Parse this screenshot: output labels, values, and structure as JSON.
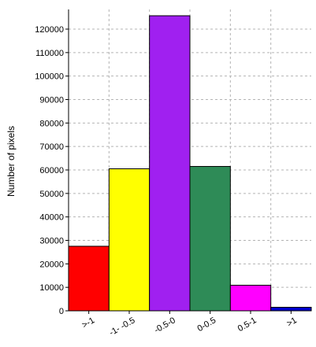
{
  "chart_data": {
    "type": "bar",
    "title": "",
    "xlabel": "",
    "ylabel": "Number of pixels",
    "categories": [
      ">-1",
      "-1- -0.5",
      "-0.5-0",
      "0-0.5",
      "0.5-1",
      ">1"
    ],
    "values": [
      27500,
      60500,
      125700,
      61500,
      10900,
      1500
    ],
    "colors": [
      "#ff0000",
      "#ffff00",
      "#a020f0",
      "#2e8b57",
      "#ff00ff",
      "#0000cd"
    ],
    "ylim": [
      0,
      125700
    ],
    "yticks": [
      0,
      10000,
      20000,
      30000,
      40000,
      50000,
      60000,
      70000,
      80000,
      90000,
      100000,
      110000,
      120000
    ],
    "grid": true,
    "gridlines_x": [
      5,
      4,
      3,
      2,
      1
    ],
    "legend": "none"
  }
}
